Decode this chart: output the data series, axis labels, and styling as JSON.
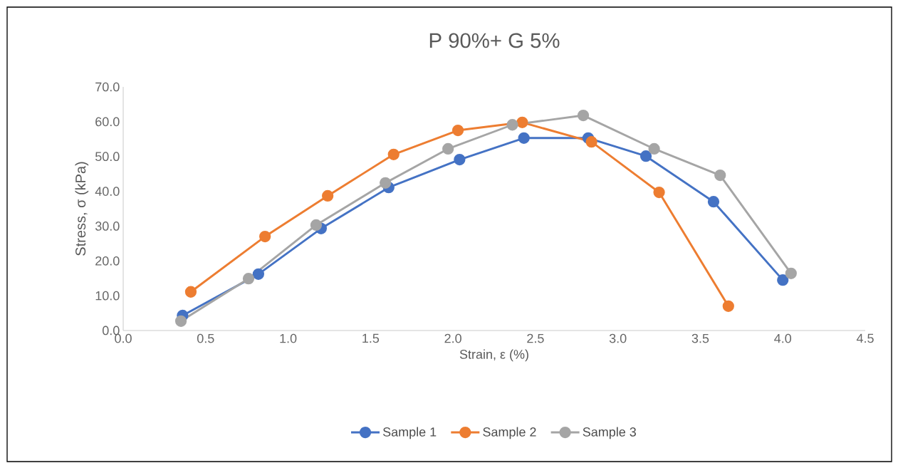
{
  "chart_data": {
    "type": "line",
    "title": "P 90%+ G 5%",
    "xlabel": "Strain, ε (%)",
    "ylabel": "Stress, σ (kPa)",
    "xlim": [
      0,
      4.5
    ],
    "ylim": [
      0,
      70
    ],
    "xticks": [
      {
        "value": 0,
        "label": "0.0"
      },
      0.5,
      {
        "value": 1,
        "label": "1.0"
      },
      1.5,
      {
        "value": 2,
        "label": "2.0"
      },
      2.5,
      {
        "value": 3,
        "label": "3.0"
      },
      3.5,
      {
        "value": 4,
        "label": "4.0"
      },
      4.5
    ],
    "yticks": [
      {
        "value": 0,
        "label": "0.0"
      },
      {
        "value": 10,
        "label": "10.0"
      },
      {
        "value": 20,
        "label": "20.0"
      },
      {
        "value": 30,
        "label": "30.0"
      },
      {
        "value": 40,
        "label": "40.0"
      },
      {
        "value": 50,
        "label": "50.0"
      },
      {
        "value": 60,
        "label": "60.0"
      },
      {
        "value": 70,
        "label": "70.0"
      }
    ],
    "grid": false,
    "legend": "bottom",
    "marker": "circle",
    "line_style": "solid",
    "series": [
      {
        "name": "Sample 1",
        "color": "#4472c4",
        "x": [
          0.36,
          0.82,
          1.2,
          1.61,
          2.04,
          2.43,
          2.82,
          3.17,
          3.58,
          4.0
        ],
        "values": [
          4.3,
          16.2,
          29.3,
          41.1,
          49.1,
          55.3,
          55.3,
          50.1,
          37.0,
          14.5
        ]
      },
      {
        "name": "Sample 2",
        "color": "#ed7d31",
        "x": [
          0.41,
          0.86,
          1.24,
          1.64,
          2.03,
          2.42,
          2.84,
          3.25,
          3.67
        ],
        "values": [
          11.1,
          27.0,
          38.7,
          50.6,
          57.5,
          59.8,
          54.2,
          39.7,
          7.0
        ]
      },
      {
        "name": "Sample 3",
        "color": "#a5a5a5",
        "x": [
          0.35,
          0.76,
          1.17,
          1.59,
          1.97,
          2.36,
          2.79,
          3.22,
          3.62,
          4.05
        ],
        "values": [
          2.7,
          14.9,
          30.3,
          42.4,
          52.2,
          59.1,
          61.8,
          52.2,
          44.6,
          16.4
        ]
      }
    ]
  }
}
